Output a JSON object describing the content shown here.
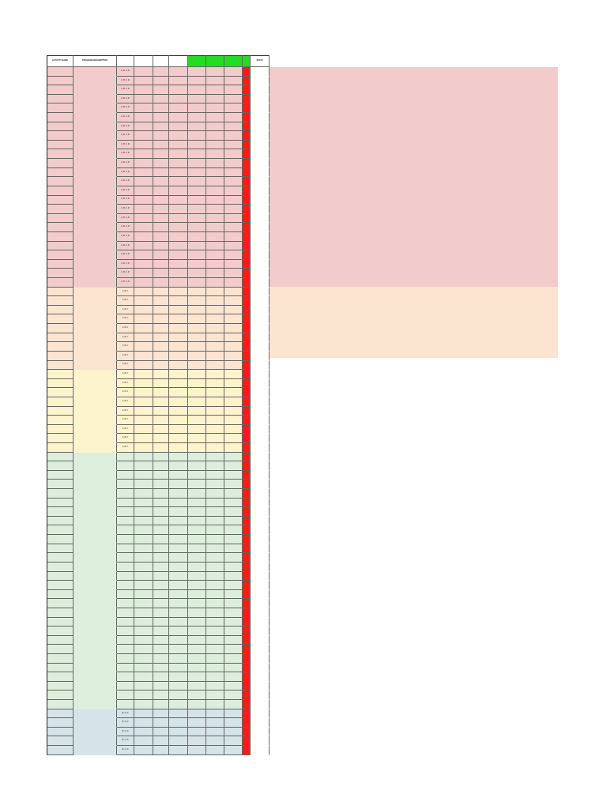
{
  "colors": {
    "grid_line": "#666666",
    "header_green": "#22dd22",
    "status_red": "#ff1a1a",
    "section_tints": [
      "#f2cccc",
      "#fbe5d0",
      "#fdf3cc",
      "#ddeedd",
      "#d5e4e8"
    ]
  },
  "table": {
    "headers": [
      "ACTIVITY NAME",
      "PROGRAM DESCRIPTION",
      "",
      "",
      "",
      "",
      "",
      "",
      "",
      "",
      "STATE"
    ],
    "green_columns": [
      6,
      7,
      8,
      9
    ],
    "sections": [
      {
        "tint": 0,
        "rows": 24,
        "fill_bg": true,
        "codes": [
          "A, B, C, D"
        ]
      },
      {
        "tint": 1,
        "rows": 9,
        "fill_bg": true,
        "codes": [
          "A, B, C"
        ]
      },
      {
        "tint": 2,
        "rows": 9,
        "fill_bg": false,
        "codes": [
          "A, B, C"
        ]
      },
      {
        "tint": 3,
        "rows": 28,
        "fill_bg": false,
        "codes": []
      },
      {
        "tint": 4,
        "rows": 5,
        "fill_bg": false,
        "codes": [
          "B, C, D"
        ]
      }
    ]
  }
}
